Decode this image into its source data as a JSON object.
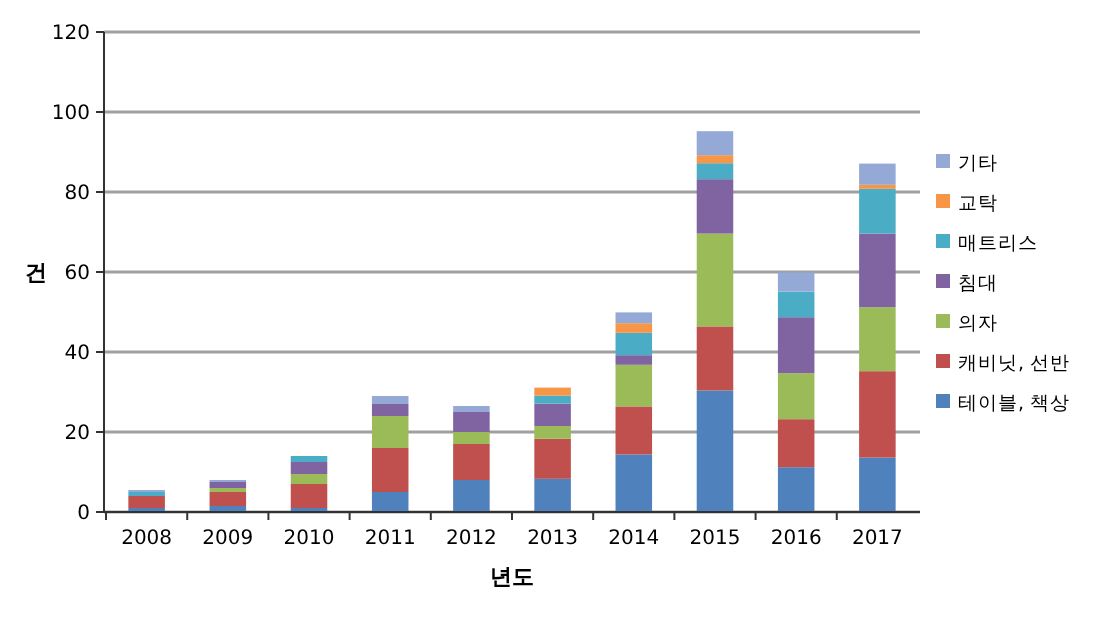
{
  "chart_data": {
    "type": "bar",
    "stacked": true,
    "xlabel": "년도",
    "ylabel": "건",
    "categories": [
      "2008",
      "2009",
      "2010",
      "2011",
      "2012",
      "2013",
      "2014",
      "2015",
      "2016",
      "2017"
    ],
    "series": [
      {
        "name": "테이블, 책상",
        "color": "#4f81bd",
        "values": [
          1,
          1.5,
          1,
          5,
          8,
          8.3,
          14.4,
          30.4,
          11.2,
          13.6
        ]
      },
      {
        "name": "캐비닛, 선반",
        "color": "#c0504d",
        "values": [
          3,
          3.5,
          6,
          11,
          9,
          10,
          12,
          16,
          12,
          21.6
        ]
      },
      {
        "name": "의자",
        "color": "#9bbb59",
        "values": [
          0,
          1,
          2.5,
          8,
          3,
          3.2,
          10.4,
          23.2,
          11.5,
          16
        ]
      },
      {
        "name": "침대",
        "color": "#8064a2",
        "values": [
          0,
          1.5,
          3,
          3,
          5,
          5.6,
          2.4,
          13.6,
          14,
          18.4
        ]
      },
      {
        "name": "매트리스",
        "color": "#4bacc6",
        "values": [
          1,
          0,
          1.5,
          0,
          0,
          2,
          5.6,
          4,
          6.4,
          11.2
        ]
      },
      {
        "name": "교탁",
        "color": "#f79646",
        "values": [
          0,
          0,
          0,
          0,
          0,
          2,
          2.4,
          2,
          0,
          1
        ]
      },
      {
        "name": "기타",
        "color": "#95a9d6",
        "values": [
          0.5,
          0.5,
          0,
          2,
          1.5,
          0,
          2.7,
          6,
          4.8,
          5.3
        ]
      }
    ],
    "ylim": [
      0,
      120
    ],
    "yticks": [
      0,
      20,
      40,
      60,
      80,
      100,
      120
    ],
    "grid": "y",
    "legend": "right"
  }
}
